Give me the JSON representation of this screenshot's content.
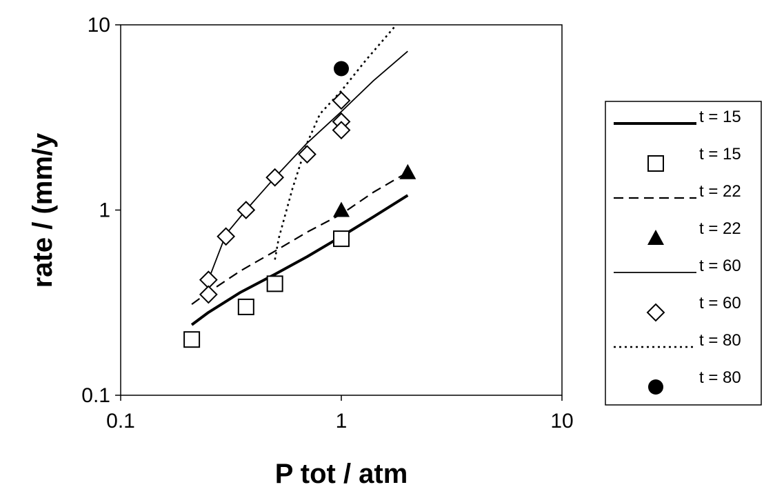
{
  "chart_data": {
    "type": "scatter",
    "xlabel": "P tot / atm",
    "ylabel": "rate / (mm/y",
    "xscale": "log",
    "yscale": "log",
    "xlim": [
      0.1,
      10
    ],
    "ylim": [
      0.1,
      10
    ],
    "x_ticks": [
      "0.1",
      "1",
      "10"
    ],
    "y_ticks": [
      "0.1",
      "1",
      "10"
    ],
    "grid": false,
    "legend_position": "right",
    "series": [
      {
        "name": "t = 15",
        "kind": "line",
        "style": "solid-thick",
        "color": "#000000",
        "x": [
          0.21,
          0.25,
          0.35,
          0.5,
          0.7,
          1.0,
          1.4,
          2.0
        ],
        "y": [
          0.24,
          0.28,
          0.36,
          0.45,
          0.56,
          0.72,
          0.92,
          1.2
        ]
      },
      {
        "name": "t = 15",
        "kind": "marker",
        "marker": "open-square",
        "color": "#000000",
        "x": [
          0.21,
          0.37,
          0.5,
          1.0
        ],
        "y": [
          0.2,
          0.3,
          0.4,
          0.7
        ]
      },
      {
        "name": "t = 22",
        "kind": "line",
        "style": "dashed",
        "color": "#000000",
        "x": [
          0.21,
          0.25,
          0.35,
          0.5,
          0.7,
          1.0,
          1.4,
          2.0
        ],
        "y": [
          0.31,
          0.36,
          0.47,
          0.6,
          0.76,
          0.95,
          1.25,
          1.6
        ]
      },
      {
        "name": "t = 22",
        "kind": "marker",
        "marker": "filled-triangle",
        "color": "#000000",
        "x": [
          1.0,
          2.0
        ],
        "y": [
          1.0,
          1.6
        ]
      },
      {
        "name": "t = 60",
        "kind": "line",
        "style": "solid-thin",
        "color": "#000000",
        "x": [
          0.25,
          0.3,
          0.37,
          0.5,
          0.7,
          1.0,
          1.4,
          2.0
        ],
        "y": [
          0.42,
          0.74,
          1.0,
          1.5,
          2.3,
          3.4,
          5.0,
          7.2
        ]
      },
      {
        "name": "t = 60",
        "kind": "marker",
        "marker": "open-diamond",
        "color": "#000000",
        "x": [
          0.25,
          0.25,
          0.3,
          0.37,
          0.5,
          0.7,
          1.0,
          1.0,
          1.0
        ],
        "y": [
          0.42,
          0.35,
          0.72,
          1.0,
          1.5,
          2.0,
          3.9,
          3.0,
          2.7
        ]
      },
      {
        "name": "t = 80",
        "kind": "line",
        "style": "dotted",
        "color": "#000000",
        "x": [
          0.5,
          0.52,
          0.6,
          0.7,
          0.8,
          1.0,
          1.3,
          1.9
        ],
        "y": [
          0.54,
          0.7,
          1.3,
          2.3,
          3.3,
          4.4,
          6.5,
          11.0
        ]
      },
      {
        "name": "t = 80",
        "kind": "marker",
        "marker": "filled-circle",
        "color": "#000000",
        "x": [
          1.0
        ],
        "y": [
          5.8
        ]
      }
    ]
  }
}
